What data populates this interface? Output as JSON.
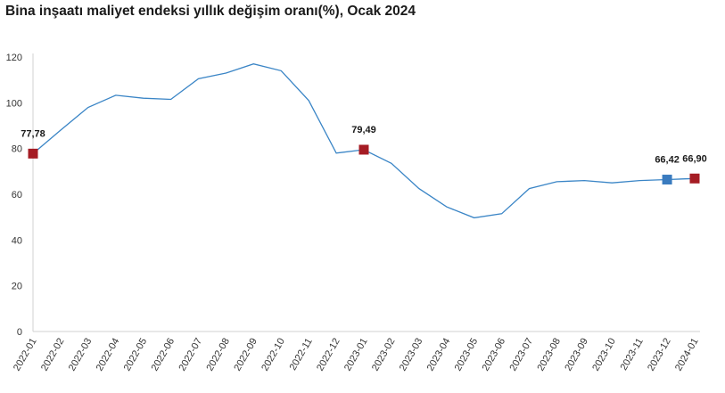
{
  "chart_data": {
    "type": "line",
    "title": "Bina inşaatı maliyet endeksi yıllık değişim oranı(%), Ocak 2024",
    "xlabel": "",
    "ylabel": "",
    "ylim": [
      0,
      120
    ],
    "yticks": [
      "0",
      "20",
      "40",
      "60",
      "80",
      "100",
      "120"
    ],
    "grid": false,
    "legend": "none",
    "categories": [
      "2022-01",
      "2022-02",
      "2022-03",
      "2022-04",
      "2022-05",
      "2022-06",
      "2022-07",
      "2022-08",
      "2022-09",
      "2022-10",
      "2022-11",
      "2022-12",
      "2023-01",
      "2023-02",
      "2023-03",
      "2023-04",
      "2023-05",
      "2023-06",
      "2023-07",
      "2023-08",
      "2023-09",
      "2023-10",
      "2023-11",
      "2023-12",
      "2024-01"
    ],
    "series": [
      {
        "values": [
          77.78,
          88.0,
          98.0,
          103.3,
          102.0,
          101.5,
          110.5,
          113.0,
          117.0,
          114.0,
          101.0,
          78.0,
          79.49,
          73.5,
          62.5,
          54.5,
          49.7,
          51.5,
          62.5,
          65.5,
          66.0,
          65.0,
          66.0,
          66.42,
          66.9
        ],
        "color": "#3a85c6"
      }
    ],
    "markers": [
      {
        "index": 0,
        "label": "77,78",
        "color": "#a51c24"
      },
      {
        "index": 12,
        "label": "79,49",
        "color": "#a51c24"
      },
      {
        "index": 23,
        "label": "66,42",
        "color": "#3a7bbf"
      },
      {
        "index": 24,
        "label": "66,90",
        "color": "#a51c24"
      }
    ]
  }
}
